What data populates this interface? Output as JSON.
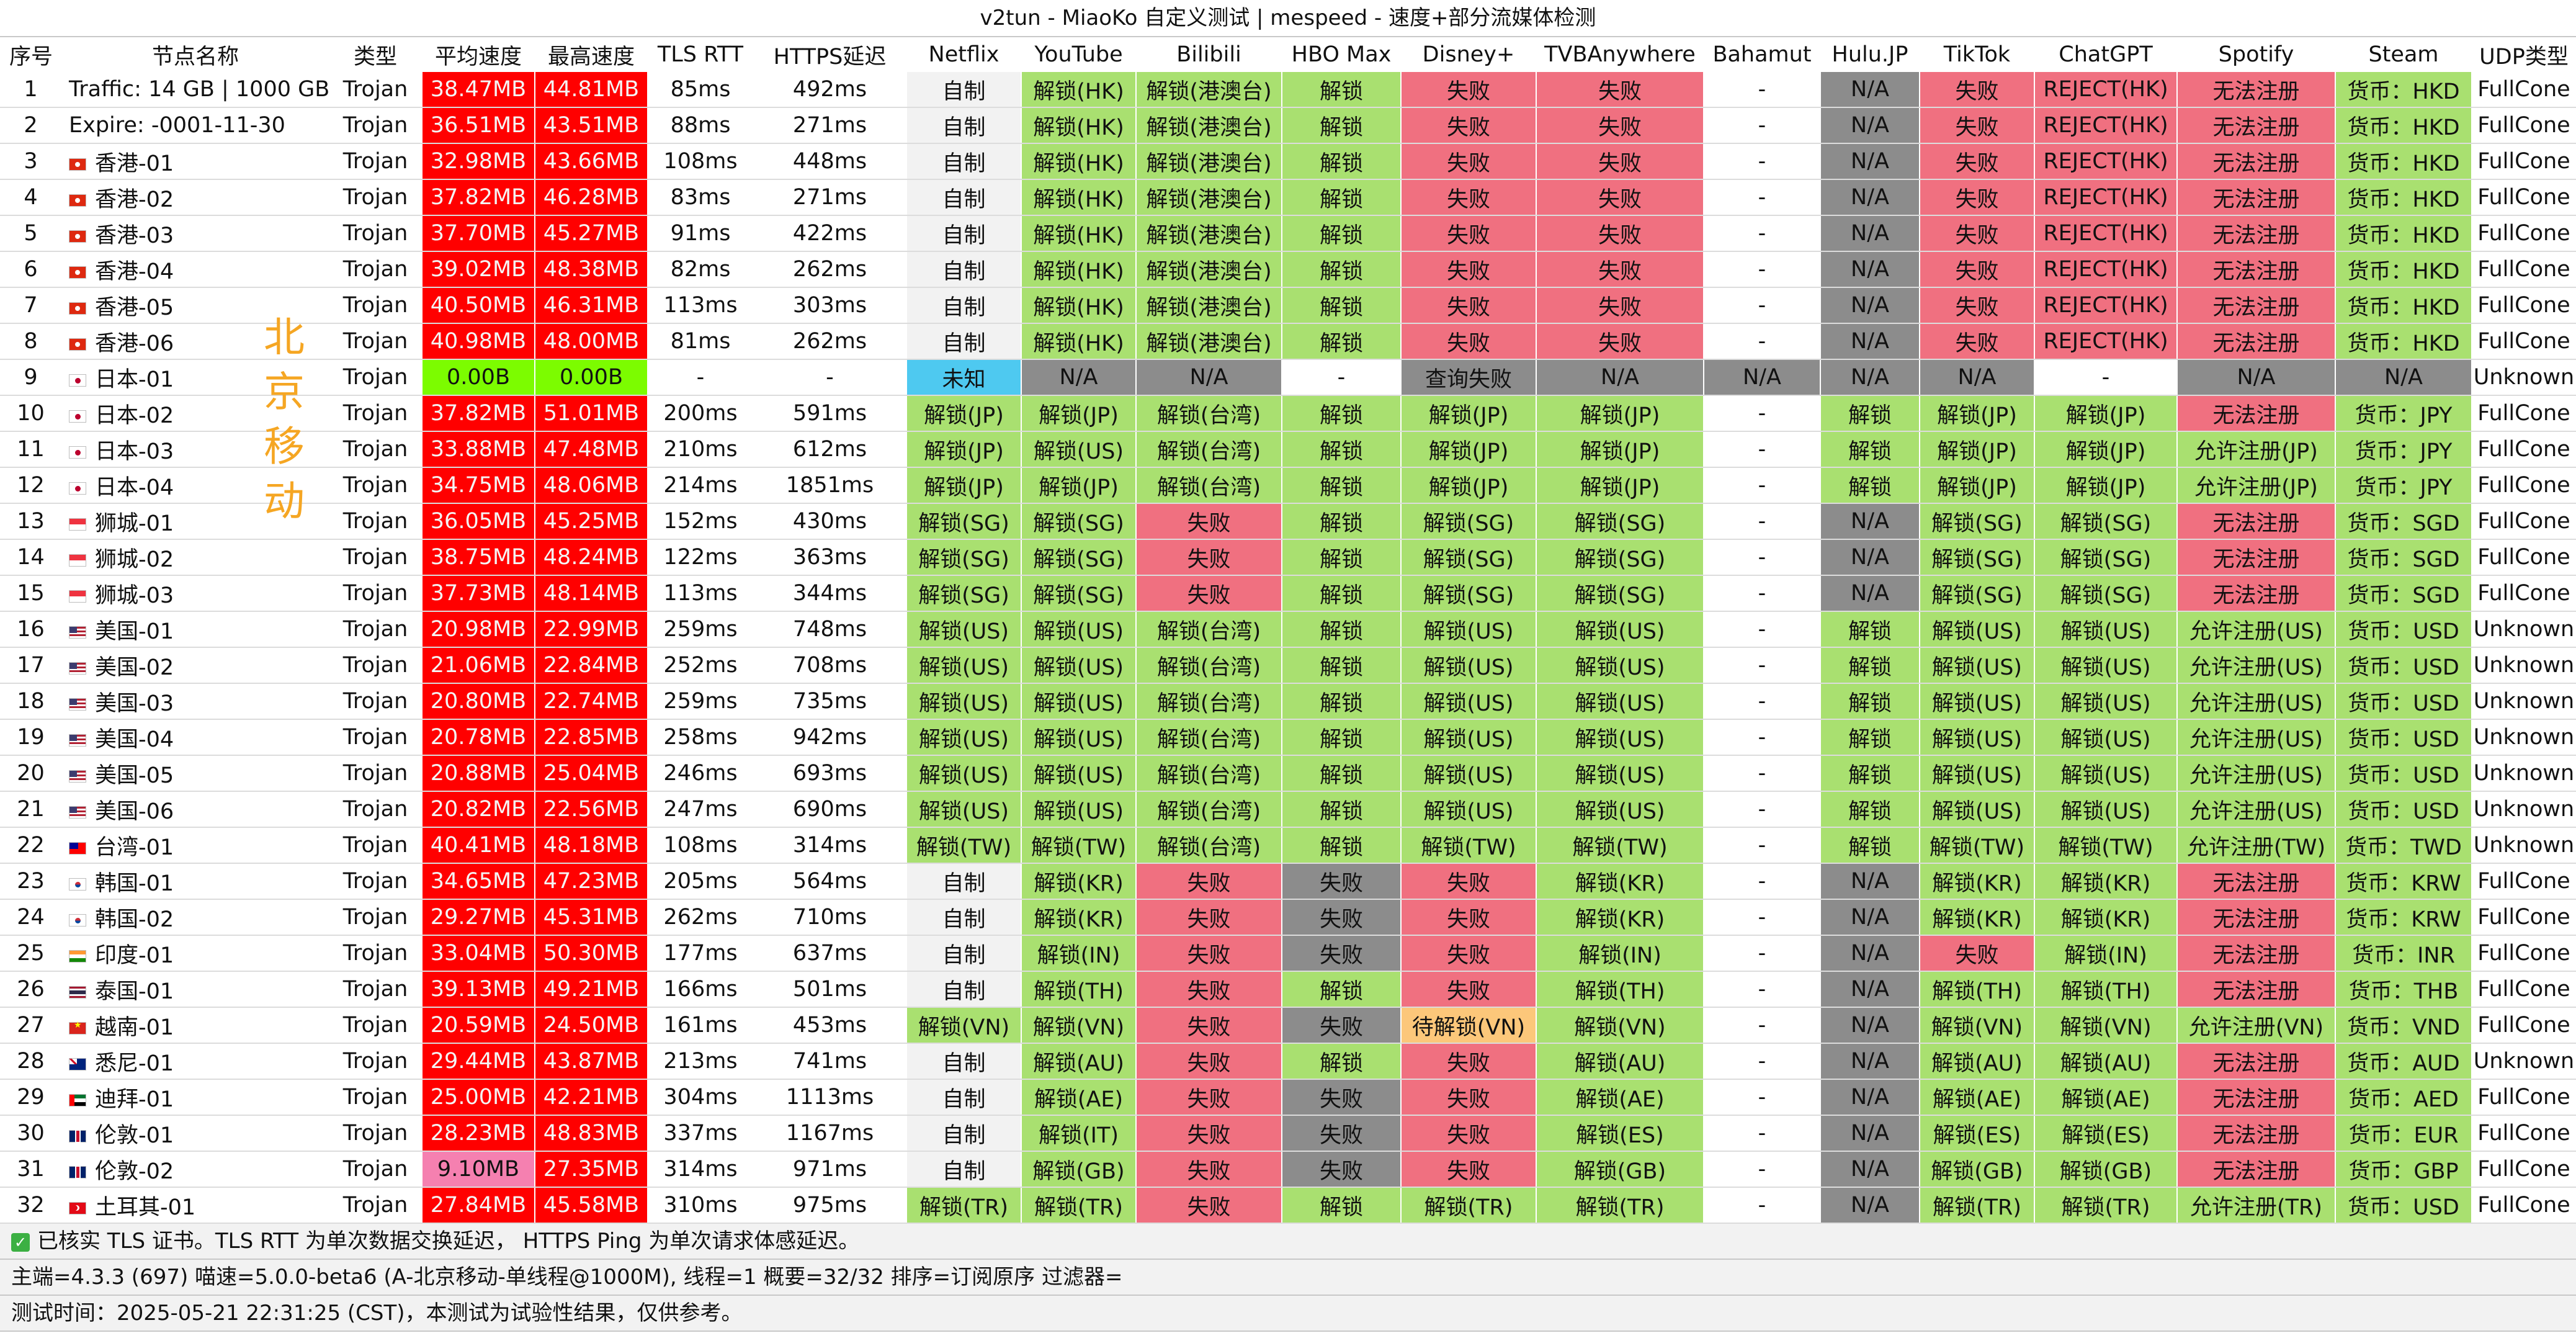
{
  "title": "v2tun - MiaoKo 自定义测试 | mespeed - 速度+部分流媒体检测",
  "side_label": [
    "北",
    "京",
    "移",
    "动"
  ],
  "colors": {
    "red": "#ff0000",
    "green": "#a9e070",
    "fail": "#f07080",
    "gray": "#8c8c8c",
    "bright_green": "#7cfc00",
    "pink": "#f580b0",
    "cyan": "#4ec9f0",
    "orange": "#fcc77a",
    "light": "#f2f2f2",
    "white": "#ffffff",
    "text_on_red": "#f5f5f5"
  },
  "headers": [
    "序号",
    "节点名称",
    "类型",
    "平均速度",
    "最高速度",
    "TLS RTT",
    "HTTPS延迟",
    "Netflix",
    "YouTube",
    "Bilibili",
    "HBO Max",
    "Disney+",
    "TVBAnywhere",
    "Bahamut",
    "Hulu.JP",
    "TikTok",
    "ChatGPT",
    "Spotify",
    "Steam",
    "UDP类型"
  ],
  "rows": [
    {
      "no": "1",
      "flag": "",
      "name": "Traffic: 14 GB | 1000 GB",
      "type": "Trojan",
      "avg": "38.47MB",
      "max": "44.81MB",
      "rtt": "85ms",
      "https": "492ms",
      "netflix": "自制",
      "youtube": "解锁(HK)",
      "bilibili": "解锁(港澳台)",
      "hbo": "解锁",
      "disney": "失败",
      "tvb": "失败",
      "bahamut": "-",
      "hulu": "N/A",
      "tiktok": "失败",
      "chatgpt": "REJECT(HK)",
      "spotify": "无法注册",
      "steam": "货币：HKD",
      "udp": "FullCone"
    },
    {
      "no": "2",
      "flag": "",
      "name": "Expire: -0001-11-30",
      "type": "Trojan",
      "avg": "36.51MB",
      "max": "43.51MB",
      "rtt": "88ms",
      "https": "271ms",
      "netflix": "自制",
      "youtube": "解锁(HK)",
      "bilibili": "解锁(港澳台)",
      "hbo": "解锁",
      "disney": "失败",
      "tvb": "失败",
      "bahamut": "-",
      "hulu": "N/A",
      "tiktok": "失败",
      "chatgpt": "REJECT(HK)",
      "spotify": "无法注册",
      "steam": "货币：HKD",
      "udp": "FullCone"
    },
    {
      "no": "3",
      "flag": "hk",
      "name": "香港-01",
      "type": "Trojan",
      "avg": "32.98MB",
      "max": "43.66MB",
      "rtt": "108ms",
      "https": "448ms",
      "netflix": "自制",
      "youtube": "解锁(HK)",
      "bilibili": "解锁(港澳台)",
      "hbo": "解锁",
      "disney": "失败",
      "tvb": "失败",
      "bahamut": "-",
      "hulu": "N/A",
      "tiktok": "失败",
      "chatgpt": "REJECT(HK)",
      "spotify": "无法注册",
      "steam": "货币：HKD",
      "udp": "FullCone"
    },
    {
      "no": "4",
      "flag": "hk",
      "name": "香港-02",
      "type": "Trojan",
      "avg": "37.82MB",
      "max": "46.28MB",
      "rtt": "83ms",
      "https": "271ms",
      "netflix": "自制",
      "youtube": "解锁(HK)",
      "bilibili": "解锁(港澳台)",
      "hbo": "解锁",
      "disney": "失败",
      "tvb": "失败",
      "bahamut": "-",
      "hulu": "N/A",
      "tiktok": "失败",
      "chatgpt": "REJECT(HK)",
      "spotify": "无法注册",
      "steam": "货币：HKD",
      "udp": "FullCone"
    },
    {
      "no": "5",
      "flag": "hk",
      "name": "香港-03",
      "type": "Trojan",
      "avg": "37.70MB",
      "max": "45.27MB",
      "rtt": "91ms",
      "https": "422ms",
      "netflix": "自制",
      "youtube": "解锁(HK)",
      "bilibili": "解锁(港澳台)",
      "hbo": "解锁",
      "disney": "失败",
      "tvb": "失败",
      "bahamut": "-",
      "hulu": "N/A",
      "tiktok": "失败",
      "chatgpt": "REJECT(HK)",
      "spotify": "无法注册",
      "steam": "货币：HKD",
      "udp": "FullCone"
    },
    {
      "no": "6",
      "flag": "hk",
      "name": "香港-04",
      "type": "Trojan",
      "avg": "39.02MB",
      "max": "48.38MB",
      "rtt": "82ms",
      "https": "262ms",
      "netflix": "自制",
      "youtube": "解锁(HK)",
      "bilibili": "解锁(港澳台)",
      "hbo": "解锁",
      "disney": "失败",
      "tvb": "失败",
      "bahamut": "-",
      "hulu": "N/A",
      "tiktok": "失败",
      "chatgpt": "REJECT(HK)",
      "spotify": "无法注册",
      "steam": "货币：HKD",
      "udp": "FullCone"
    },
    {
      "no": "7",
      "flag": "hk",
      "name": "香港-05",
      "type": "Trojan",
      "avg": "40.50MB",
      "max": "46.31MB",
      "rtt": "113ms",
      "https": "303ms",
      "netflix": "自制",
      "youtube": "解锁(HK)",
      "bilibili": "解锁(港澳台)",
      "hbo": "解锁",
      "disney": "失败",
      "tvb": "失败",
      "bahamut": "-",
      "hulu": "N/A",
      "tiktok": "失败",
      "chatgpt": "REJECT(HK)",
      "spotify": "无法注册",
      "steam": "货币：HKD",
      "udp": "FullCone"
    },
    {
      "no": "8",
      "flag": "hk",
      "name": "香港-06",
      "type": "Trojan",
      "avg": "40.98MB",
      "max": "48.00MB",
      "rtt": "81ms",
      "https": "262ms",
      "netflix": "自制",
      "youtube": "解锁(HK)",
      "bilibili": "解锁(港澳台)",
      "hbo": "解锁",
      "disney": "失败",
      "tvb": "失败",
      "bahamut": "-",
      "hulu": "N/A",
      "tiktok": "失败",
      "chatgpt": "REJECT(HK)",
      "spotify": "无法注册",
      "steam": "货币：HKD",
      "udp": "FullCone"
    },
    {
      "no": "9",
      "flag": "jp",
      "name": "日本-01",
      "type": "Trojan",
      "avg": "0.00B",
      "max": "0.00B",
      "rtt": "-",
      "https": "-",
      "netflix": "未知",
      "youtube": "N/A",
      "bilibili": "N/A",
      "hbo": "-",
      "disney": "查询失败",
      "tvb": "N/A",
      "bahamut": "N/A",
      "hulu": "N/A",
      "tiktok": "N/A",
      "chatgpt": "-",
      "spotify": "N/A",
      "steam": "N/A",
      "udp": "Unknown"
    },
    {
      "no": "10",
      "flag": "jp",
      "name": "日本-02",
      "type": "Trojan",
      "avg": "37.82MB",
      "max": "51.01MB",
      "rtt": "200ms",
      "https": "591ms",
      "netflix": "解锁(JP)",
      "youtube": "解锁(JP)",
      "bilibili": "解锁(台湾)",
      "hbo": "解锁",
      "disney": "解锁(JP)",
      "tvb": "解锁(JP)",
      "bahamut": "-",
      "hulu": "解锁",
      "tiktok": "解锁(JP)",
      "chatgpt": "解锁(JP)",
      "spotify": "无法注册",
      "steam": "货币：JPY",
      "udp": "FullCone"
    },
    {
      "no": "11",
      "flag": "jp",
      "name": "日本-03",
      "type": "Trojan",
      "avg": "33.88MB",
      "max": "47.48MB",
      "rtt": "210ms",
      "https": "612ms",
      "netflix": "解锁(JP)",
      "youtube": "解锁(US)",
      "bilibili": "解锁(台湾)",
      "hbo": "解锁",
      "disney": "解锁(JP)",
      "tvb": "解锁(JP)",
      "bahamut": "-",
      "hulu": "解锁",
      "tiktok": "解锁(JP)",
      "chatgpt": "解锁(JP)",
      "spotify": "允许注册(JP)",
      "steam": "货币：JPY",
      "udp": "FullCone"
    },
    {
      "no": "12",
      "flag": "jp",
      "name": "日本-04",
      "type": "Trojan",
      "avg": "34.75MB",
      "max": "48.06MB",
      "rtt": "214ms",
      "https": "1851ms",
      "netflix": "解锁(JP)",
      "youtube": "解锁(JP)",
      "bilibili": "解锁(台湾)",
      "hbo": "解锁",
      "disney": "解锁(JP)",
      "tvb": "解锁(JP)",
      "bahamut": "-",
      "hulu": "解锁",
      "tiktok": "解锁(JP)",
      "chatgpt": "解锁(JP)",
      "spotify": "允许注册(JP)",
      "steam": "货币：JPY",
      "udp": "FullCone"
    },
    {
      "no": "13",
      "flag": "sg",
      "name": "狮城-01",
      "type": "Trojan",
      "avg": "36.05MB",
      "max": "45.25MB",
      "rtt": "152ms",
      "https": "430ms",
      "netflix": "解锁(SG)",
      "youtube": "解锁(SG)",
      "bilibili": "失败",
      "hbo": "解锁",
      "disney": "解锁(SG)",
      "tvb": "解锁(SG)",
      "bahamut": "-",
      "hulu": "N/A",
      "tiktok": "解锁(SG)",
      "chatgpt": "解锁(SG)",
      "spotify": "无法注册",
      "steam": "货币：SGD",
      "udp": "FullCone"
    },
    {
      "no": "14",
      "flag": "sg",
      "name": "狮城-02",
      "type": "Trojan",
      "avg": "38.75MB",
      "max": "48.24MB",
      "rtt": "122ms",
      "https": "363ms",
      "netflix": "解锁(SG)",
      "youtube": "解锁(SG)",
      "bilibili": "失败",
      "hbo": "解锁",
      "disney": "解锁(SG)",
      "tvb": "解锁(SG)",
      "bahamut": "-",
      "hulu": "N/A",
      "tiktok": "解锁(SG)",
      "chatgpt": "解锁(SG)",
      "spotify": "无法注册",
      "steam": "货币：SGD",
      "udp": "FullCone"
    },
    {
      "no": "15",
      "flag": "sg",
      "name": "狮城-03",
      "type": "Trojan",
      "avg": "37.73MB",
      "max": "48.14MB",
      "rtt": "113ms",
      "https": "344ms",
      "netflix": "解锁(SG)",
      "youtube": "解锁(SG)",
      "bilibili": "失败",
      "hbo": "解锁",
      "disney": "解锁(SG)",
      "tvb": "解锁(SG)",
      "bahamut": "-",
      "hulu": "N/A",
      "tiktok": "解锁(SG)",
      "chatgpt": "解锁(SG)",
      "spotify": "无法注册",
      "steam": "货币：SGD",
      "udp": "FullCone"
    },
    {
      "no": "16",
      "flag": "us",
      "name": "美国-01",
      "type": "Trojan",
      "avg": "20.98MB",
      "max": "22.99MB",
      "rtt": "259ms",
      "https": "748ms",
      "netflix": "解锁(US)",
      "youtube": "解锁(US)",
      "bilibili": "解锁(台湾)",
      "hbo": "解锁",
      "disney": "解锁(US)",
      "tvb": "解锁(US)",
      "bahamut": "-",
      "hulu": "解锁",
      "tiktok": "解锁(US)",
      "chatgpt": "解锁(US)",
      "spotify": "允许注册(US)",
      "steam": "货币：USD",
      "udp": "Unknown"
    },
    {
      "no": "17",
      "flag": "us",
      "name": "美国-02",
      "type": "Trojan",
      "avg": "21.06MB",
      "max": "22.84MB",
      "rtt": "252ms",
      "https": "708ms",
      "netflix": "解锁(US)",
      "youtube": "解锁(US)",
      "bilibili": "解锁(台湾)",
      "hbo": "解锁",
      "disney": "解锁(US)",
      "tvb": "解锁(US)",
      "bahamut": "-",
      "hulu": "解锁",
      "tiktok": "解锁(US)",
      "chatgpt": "解锁(US)",
      "spotify": "允许注册(US)",
      "steam": "货币：USD",
      "udp": "Unknown"
    },
    {
      "no": "18",
      "flag": "us",
      "name": "美国-03",
      "type": "Trojan",
      "avg": "20.80MB",
      "max": "22.74MB",
      "rtt": "259ms",
      "https": "735ms",
      "netflix": "解锁(US)",
      "youtube": "解锁(US)",
      "bilibili": "解锁(台湾)",
      "hbo": "解锁",
      "disney": "解锁(US)",
      "tvb": "解锁(US)",
      "bahamut": "-",
      "hulu": "解锁",
      "tiktok": "解锁(US)",
      "chatgpt": "解锁(US)",
      "spotify": "允许注册(US)",
      "steam": "货币：USD",
      "udp": "Unknown"
    },
    {
      "no": "19",
      "flag": "us",
      "name": "美国-04",
      "type": "Trojan",
      "avg": "20.78MB",
      "max": "22.85MB",
      "rtt": "258ms",
      "https": "942ms",
      "netflix": "解锁(US)",
      "youtube": "解锁(US)",
      "bilibili": "解锁(台湾)",
      "hbo": "解锁",
      "disney": "解锁(US)",
      "tvb": "解锁(US)",
      "bahamut": "-",
      "hulu": "解锁",
      "tiktok": "解锁(US)",
      "chatgpt": "解锁(US)",
      "spotify": "允许注册(US)",
      "steam": "货币：USD",
      "udp": "Unknown"
    },
    {
      "no": "20",
      "flag": "us",
      "name": "美国-05",
      "type": "Trojan",
      "avg": "20.88MB",
      "max": "25.04MB",
      "rtt": "246ms",
      "https": "693ms",
      "netflix": "解锁(US)",
      "youtube": "解锁(US)",
      "bilibili": "解锁(台湾)",
      "hbo": "解锁",
      "disney": "解锁(US)",
      "tvb": "解锁(US)",
      "bahamut": "-",
      "hulu": "解锁",
      "tiktok": "解锁(US)",
      "chatgpt": "解锁(US)",
      "spotify": "允许注册(US)",
      "steam": "货币：USD",
      "udp": "Unknown"
    },
    {
      "no": "21",
      "flag": "us",
      "name": "美国-06",
      "type": "Trojan",
      "avg": "20.82MB",
      "max": "22.56MB",
      "rtt": "247ms",
      "https": "690ms",
      "netflix": "解锁(US)",
      "youtube": "解锁(US)",
      "bilibili": "解锁(台湾)",
      "hbo": "解锁",
      "disney": "解锁(US)",
      "tvb": "解锁(US)",
      "bahamut": "-",
      "hulu": "解锁",
      "tiktok": "解锁(US)",
      "chatgpt": "解锁(US)",
      "spotify": "允许注册(US)",
      "steam": "货币：USD",
      "udp": "Unknown"
    },
    {
      "no": "22",
      "flag": "tw",
      "name": "台湾-01",
      "type": "Trojan",
      "avg": "40.41MB",
      "max": "48.18MB",
      "rtt": "108ms",
      "https": "314ms",
      "netflix": "解锁(TW)",
      "youtube": "解锁(TW)",
      "bilibili": "解锁(台湾)",
      "hbo": "解锁",
      "disney": "解锁(TW)",
      "tvb": "解锁(TW)",
      "bahamut": "-",
      "hulu": "解锁",
      "tiktok": "解锁(TW)",
      "chatgpt": "解锁(TW)",
      "spotify": "允许注册(TW)",
      "steam": "货币：TWD",
      "udp": "Unknown"
    },
    {
      "no": "23",
      "flag": "kr",
      "name": "韩国-01",
      "type": "Trojan",
      "avg": "34.65MB",
      "max": "47.23MB",
      "rtt": "205ms",
      "https": "564ms",
      "netflix": "自制",
      "youtube": "解锁(KR)",
      "bilibili": "失败",
      "hbo": "失败",
      "disney": "失败",
      "tvb": "解锁(KR)",
      "bahamut": "-",
      "hulu": "N/A",
      "tiktok": "解锁(KR)",
      "chatgpt": "解锁(KR)",
      "spotify": "无法注册",
      "steam": "货币：KRW",
      "udp": "FullCone"
    },
    {
      "no": "24",
      "flag": "kr",
      "name": "韩国-02",
      "type": "Trojan",
      "avg": "29.27MB",
      "max": "45.31MB",
      "rtt": "262ms",
      "https": "710ms",
      "netflix": "自制",
      "youtube": "解锁(KR)",
      "bilibili": "失败",
      "hbo": "失败",
      "disney": "失败",
      "tvb": "解锁(KR)",
      "bahamut": "-",
      "hulu": "N/A",
      "tiktok": "解锁(KR)",
      "chatgpt": "解锁(KR)",
      "spotify": "无法注册",
      "steam": "货币：KRW",
      "udp": "FullCone"
    },
    {
      "no": "25",
      "flag": "in",
      "name": "印度-01",
      "type": "Trojan",
      "avg": "33.04MB",
      "max": "50.30MB",
      "rtt": "177ms",
      "https": "637ms",
      "netflix": "自制",
      "youtube": "解锁(IN)",
      "bilibili": "失败",
      "hbo": "失败",
      "disney": "失败",
      "tvb": "解锁(IN)",
      "bahamut": "-",
      "hulu": "N/A",
      "tiktok": "失败",
      "chatgpt": "解锁(IN)",
      "spotify": "无法注册",
      "steam": "货币：INR",
      "udp": "FullCone"
    },
    {
      "no": "26",
      "flag": "th",
      "name": "泰国-01",
      "type": "Trojan",
      "avg": "39.13MB",
      "max": "49.21MB",
      "rtt": "166ms",
      "https": "501ms",
      "netflix": "自制",
      "youtube": "解锁(TH)",
      "bilibili": "失败",
      "hbo": "解锁",
      "disney": "失败",
      "tvb": "解锁(TH)",
      "bahamut": "-",
      "hulu": "N/A",
      "tiktok": "解锁(TH)",
      "chatgpt": "解锁(TH)",
      "spotify": "无法注册",
      "steam": "货币：THB",
      "udp": "FullCone"
    },
    {
      "no": "27",
      "flag": "vn",
      "name": "越南-01",
      "type": "Trojan",
      "avg": "20.59MB",
      "max": "24.50MB",
      "rtt": "161ms",
      "https": "453ms",
      "netflix": "解锁(VN)",
      "youtube": "解锁(VN)",
      "bilibili": "失败",
      "hbo": "失败",
      "disney": "待解锁(VN)",
      "tvb": "解锁(VN)",
      "bahamut": "-",
      "hulu": "N/A",
      "tiktok": "解锁(VN)",
      "chatgpt": "解锁(VN)",
      "spotify": "允许注册(VN)",
      "steam": "货币：VND",
      "udp": "FullCone"
    },
    {
      "no": "28",
      "flag": "au",
      "name": "悉尼-01",
      "type": "Trojan",
      "avg": "29.44MB",
      "max": "43.87MB",
      "rtt": "213ms",
      "https": "741ms",
      "netflix": "自制",
      "youtube": "解锁(AU)",
      "bilibili": "失败",
      "hbo": "解锁",
      "disney": "失败",
      "tvb": "解锁(AU)",
      "bahamut": "-",
      "hulu": "N/A",
      "tiktok": "解锁(AU)",
      "chatgpt": "解锁(AU)",
      "spotify": "无法注册",
      "steam": "货币：AUD",
      "udp": "Unknown"
    },
    {
      "no": "29",
      "flag": "ae",
      "name": "迪拜-01",
      "type": "Trojan",
      "avg": "25.00MB",
      "max": "42.21MB",
      "rtt": "304ms",
      "https": "1113ms",
      "netflix": "自制",
      "youtube": "解锁(AE)",
      "bilibili": "失败",
      "hbo": "失败",
      "disney": "失败",
      "tvb": "解锁(AE)",
      "bahamut": "-",
      "hulu": "N/A",
      "tiktok": "解锁(AE)",
      "chatgpt": "解锁(AE)",
      "spotify": "无法注册",
      "steam": "货币：AED",
      "udp": "FullCone"
    },
    {
      "no": "30",
      "flag": "gb",
      "name": "伦敦-01",
      "type": "Trojan",
      "avg": "28.23MB",
      "max": "48.83MB",
      "rtt": "337ms",
      "https": "1167ms",
      "netflix": "自制",
      "youtube": "解锁(IT)",
      "bilibili": "失败",
      "hbo": "失败",
      "disney": "失败",
      "tvb": "解锁(ES)",
      "bahamut": "-",
      "hulu": "N/A",
      "tiktok": "解锁(ES)",
      "chatgpt": "解锁(ES)",
      "spotify": "无法注册",
      "steam": "货币：EUR",
      "udp": "FullCone"
    },
    {
      "no": "31",
      "flag": "gb",
      "name": "伦敦-02",
      "type": "Trojan",
      "avg": "9.10MB",
      "max": "27.35MB",
      "rtt": "314ms",
      "https": "971ms",
      "netflix": "自制",
      "youtube": "解锁(GB)",
      "bilibili": "失败",
      "hbo": "失败",
      "disney": "失败",
      "tvb": "解锁(GB)",
      "bahamut": "-",
      "hulu": "N/A",
      "tiktok": "解锁(GB)",
      "chatgpt": "解锁(GB)",
      "spotify": "无法注册",
      "steam": "货币：GBP",
      "udp": "FullCone"
    },
    {
      "no": "32",
      "flag": "tr",
      "name": "土耳其-01",
      "type": "Trojan",
      "avg": "27.84MB",
      "max": "45.58MB",
      "rtt": "310ms",
      "https": "975ms",
      "netflix": "解锁(TR)",
      "youtube": "解锁(TR)",
      "bilibili": "失败",
      "hbo": "解锁",
      "disney": "解锁(TR)",
      "tvb": "解锁(TR)",
      "bahamut": "-",
      "hulu": "N/A",
      "tiktok": "解锁(TR)",
      "chatgpt": "解锁(TR)",
      "spotify": "允许注册(TR)",
      "steam": "货币：USD",
      "udp": "FullCone"
    }
  ],
  "footer": {
    "tls_note": "已核实 TLS 证书。TLS RTT 为单次数据交换延迟， HTTPS Ping 为单次请求体感延迟。",
    "info": "主端=4.3.3 (697) 喵速=5.0.0-beta6 (A-北京移动-单线程@1000M), 线程=1 概要=32/32 排序=订阅原序 过滤器=",
    "time": "测试时间：2025-05-21 22:31:25 (CST)，本测试为试验性结果，仅供参考。"
  }
}
